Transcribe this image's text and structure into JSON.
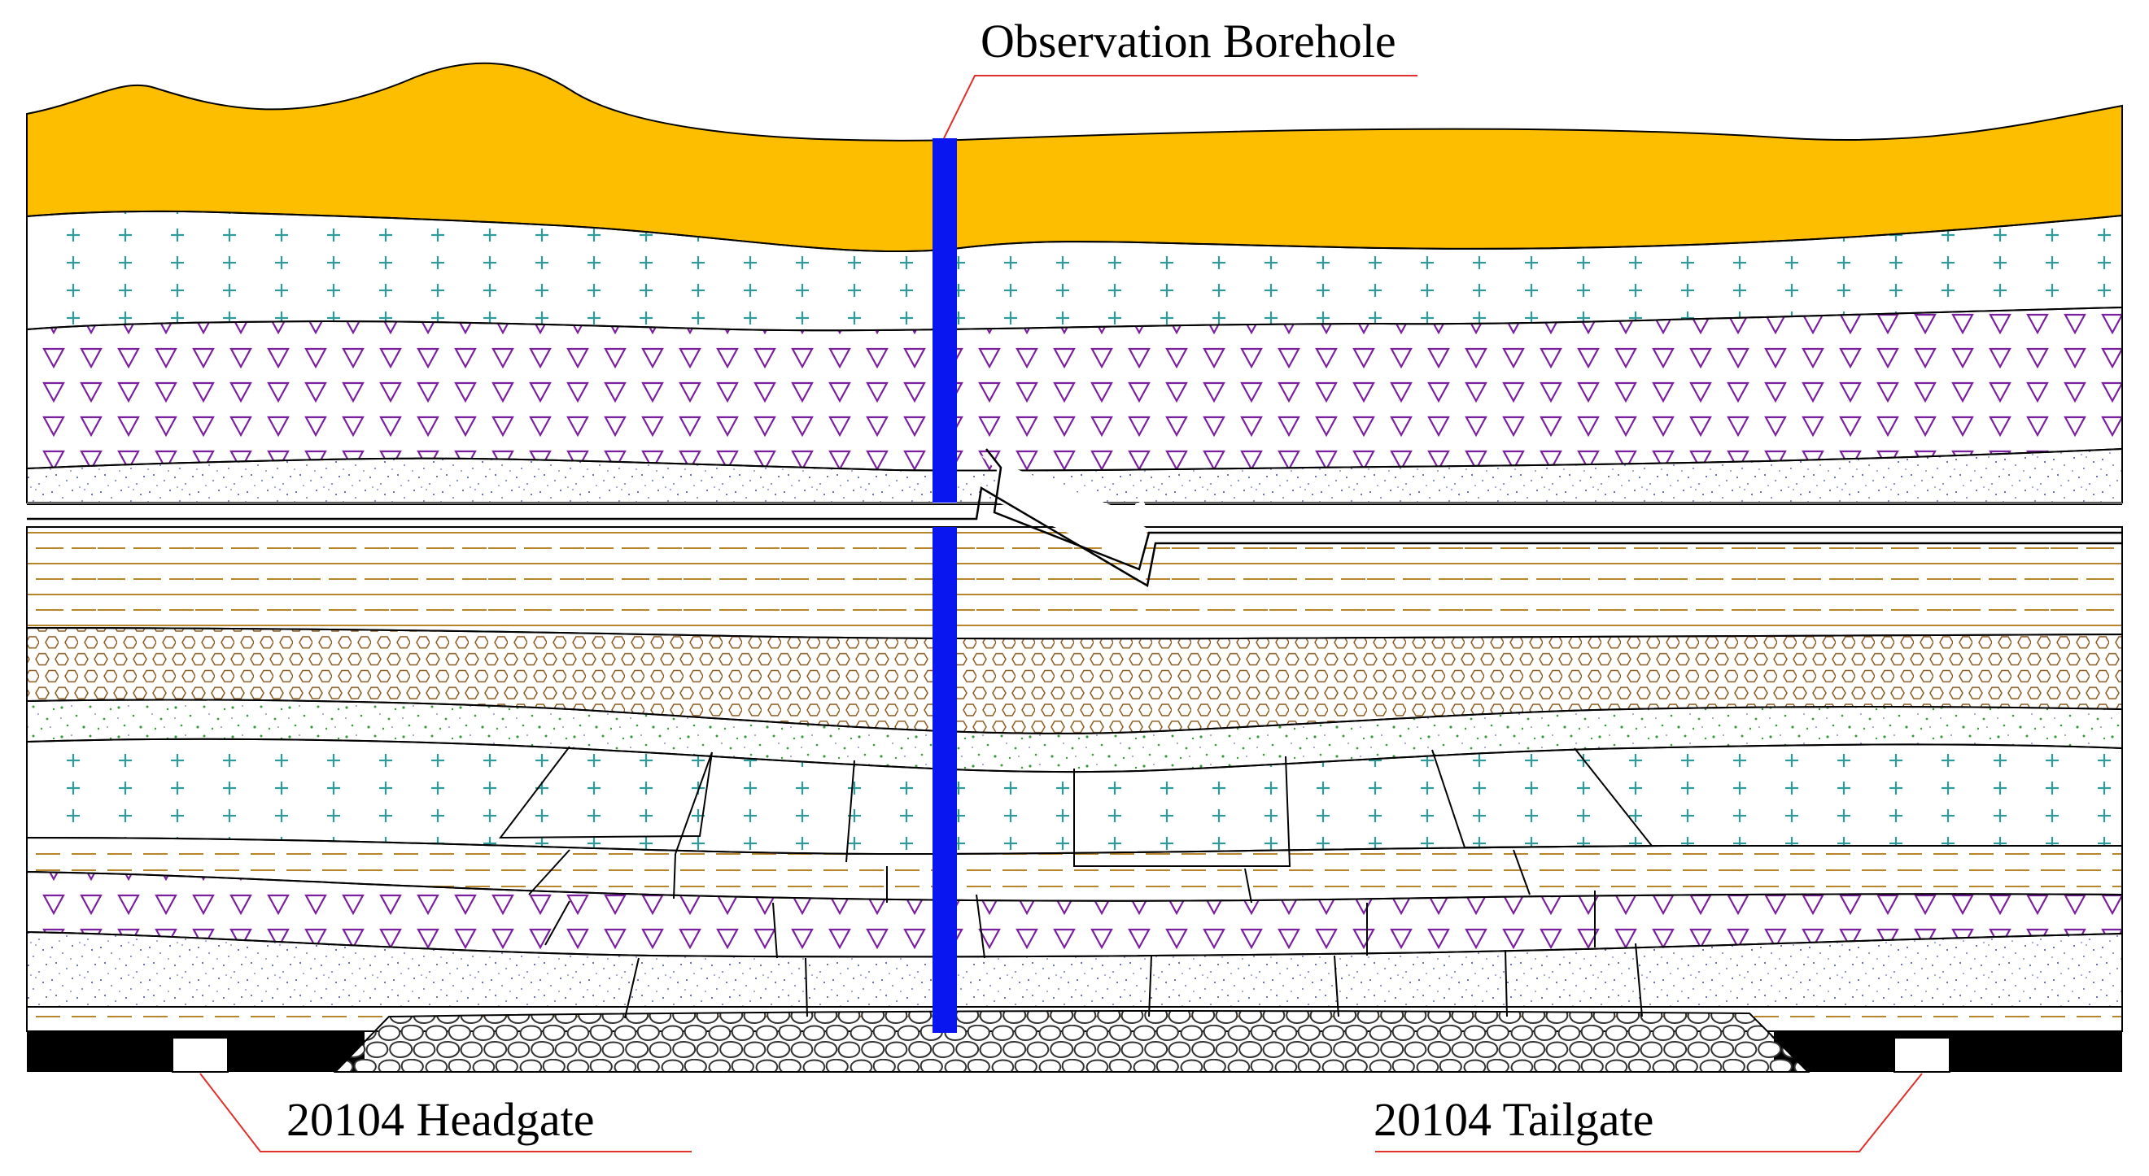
{
  "labels": {
    "borehole": "Observation Borehole",
    "headgate": "20104 Headgate",
    "tailgate": "20104 Tailgate"
  },
  "colors": {
    "topsoil": "#FDBE00",
    "borehole": "#0A16F0",
    "plus": "#2E9A9A",
    "triangle": "#7A1F9E",
    "dashes": "#B8862A",
    "hexagon": "#8B5A1F",
    "green_dots": "#3A9A3A",
    "blue_dots": "#3A4A9A",
    "leader": "#E0302A",
    "coal": "#000000",
    "gob": "#333333"
  },
  "icons": {
    "borehole": "borehole-bar",
    "gob": "caved-rock-icon",
    "fault": "break-zigzag-icon"
  }
}
